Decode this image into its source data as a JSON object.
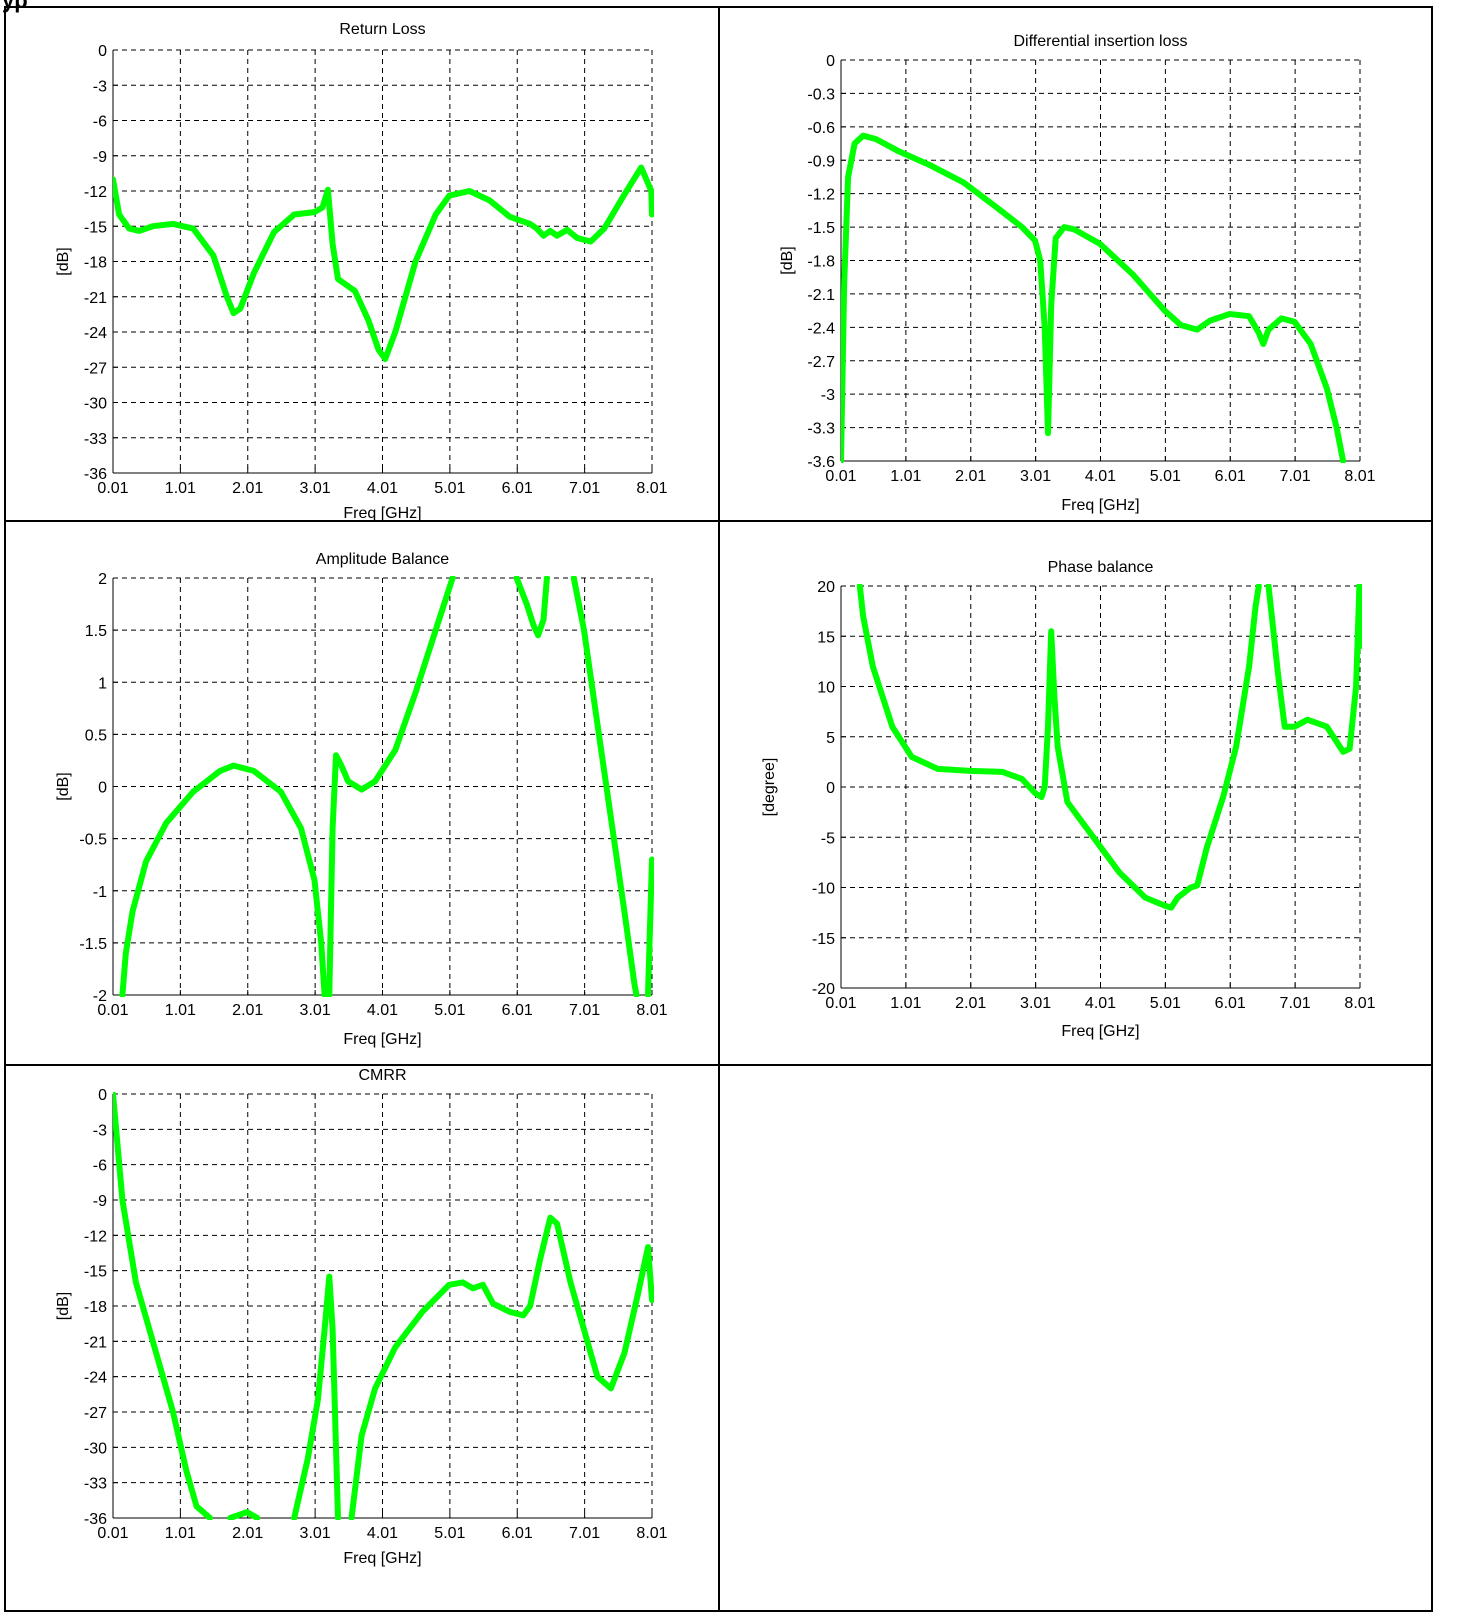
{
  "page": {
    "heading": "yp"
  },
  "chart_data": [
    {
      "type": "line",
      "title": "Return Loss",
      "xlabel": "Freq [GHz]",
      "ylabel": "[dB]",
      "xlim": [
        0.01,
        8.01
      ],
      "ylim": [
        -36,
        0
      ],
      "xticks": [
        0.01,
        1.01,
        2.01,
        3.01,
        4.01,
        5.01,
        6.01,
        7.01,
        8.01
      ],
      "xtick_labels": [
        "0.01",
        "1.01",
        "2.01",
        "3.01",
        "4.01",
        "5.01",
        "6.01",
        "7.01",
        "8.01"
      ],
      "yticks": [
        0,
        -3,
        -6,
        -9,
        -12,
        -15,
        -18,
        -21,
        -24,
        -27,
        -30,
        -33,
        -36
      ],
      "ytick_labels": [
        "0",
        "-3",
        "-6",
        "-9",
        "-12",
        "-15",
        "-18",
        "-21",
        "-24",
        "-27",
        "-30",
        "-33",
        "-36"
      ],
      "grid": true,
      "color": "#00ff00",
      "series": [
        {
          "points": [
            [
              0.01,
              -11
            ],
            [
              0.1,
              -14
            ],
            [
              0.25,
              -15.2
            ],
            [
              0.4,
              -15.4
            ],
            [
              0.6,
              -15
            ],
            [
              0.9,
              -14.8
            ],
            [
              1.2,
              -15.2
            ],
            [
              1.5,
              -17.5
            ],
            [
              1.7,
              -21
            ],
            [
              1.8,
              -22.4
            ],
            [
              1.9,
              -22
            ],
            [
              2.1,
              -19
            ],
            [
              2.4,
              -15.5
            ],
            [
              2.7,
              -14
            ],
            [
              3.0,
              -13.8
            ],
            [
              3.12,
              -13.4
            ],
            [
              3.2,
              -11.9
            ],
            [
              3.27,
              -16.5
            ],
            [
              3.35,
              -19.5
            ],
            [
              3.6,
              -20.5
            ],
            [
              3.8,
              -23
            ],
            [
              3.95,
              -25.5
            ],
            [
              4.05,
              -26.3
            ],
            [
              4.2,
              -24
            ],
            [
              4.5,
              -18
            ],
            [
              4.8,
              -14
            ],
            [
              5.0,
              -12.4
            ],
            [
              5.3,
              -12
            ],
            [
              5.6,
              -12.8
            ],
            [
              5.9,
              -14.2
            ],
            [
              6.2,
              -14.8
            ],
            [
              6.3,
              -15.2
            ],
            [
              6.4,
              -15.8
            ],
            [
              6.5,
              -15.4
            ],
            [
              6.6,
              -15.8
            ],
            [
              6.75,
              -15.3
            ],
            [
              6.9,
              -16
            ],
            [
              7.1,
              -16.3
            ],
            [
              7.3,
              -15.2
            ],
            [
              7.6,
              -12.3
            ],
            [
              7.85,
              -10
            ],
            [
              8.0,
              -12
            ],
            [
              8.01,
              -14
            ]
          ]
        }
      ]
    },
    {
      "type": "line",
      "title": "Differential insertion loss",
      "xlabel": "Freq [GHz]",
      "ylabel": "[dB]",
      "xlim": [
        0.01,
        8.01
      ],
      "ylim": [
        -3.6,
        0
      ],
      "xticks": [
        0.01,
        1.01,
        2.01,
        3.01,
        4.01,
        5.01,
        6.01,
        7.01,
        8.01
      ],
      "xtick_labels": [
        "0.01",
        "1.01",
        "2.01",
        "3.01",
        "4.01",
        "5.01",
        "6.01",
        "7.01",
        "8.01"
      ],
      "yticks": [
        0,
        -0.3,
        -0.6,
        -0.9,
        -1.2,
        -1.5,
        -1.8,
        -2.1,
        -2.4,
        -2.7,
        -3,
        -3.3,
        -3.6
      ],
      "ytick_labels": [
        "0",
        "-0.3",
        "-0.6",
        "-0.9",
        "-1.2",
        "-1.5",
        "-1.8",
        "-2.1",
        "-2.4",
        "-2.7",
        "-3",
        "-3.3",
        "-3.6"
      ],
      "grid": true,
      "color": "#00ff00",
      "series": [
        {
          "points": [
            [
              0.01,
              -3.6
            ],
            [
              0.06,
              -2
            ],
            [
              0.12,
              -1.05
            ],
            [
              0.22,
              -0.75
            ],
            [
              0.35,
              -0.68
            ],
            [
              0.55,
              -0.71
            ],
            [
              0.9,
              -0.82
            ],
            [
              1.4,
              -0.95
            ],
            [
              1.9,
              -1.1
            ],
            [
              2.4,
              -1.32
            ],
            [
              2.8,
              -1.5
            ],
            [
              3.0,
              -1.62
            ],
            [
              3.08,
              -1.8
            ],
            [
              3.15,
              -2.4
            ],
            [
              3.2,
              -3.35
            ],
            [
              3.25,
              -2.2
            ],
            [
              3.32,
              -1.6
            ],
            [
              3.45,
              -1.5
            ],
            [
              3.6,
              -1.52
            ],
            [
              4.0,
              -1.65
            ],
            [
              4.5,
              -1.92
            ],
            [
              5.0,
              -2.25
            ],
            [
              5.25,
              -2.38
            ],
            [
              5.5,
              -2.42
            ],
            [
              5.7,
              -2.34
            ],
            [
              6.0,
              -2.28
            ],
            [
              6.3,
              -2.3
            ],
            [
              6.45,
              -2.45
            ],
            [
              6.52,
              -2.55
            ],
            [
              6.6,
              -2.42
            ],
            [
              6.8,
              -2.32
            ],
            [
              7.0,
              -2.35
            ],
            [
              7.25,
              -2.55
            ],
            [
              7.5,
              -2.95
            ],
            [
              7.65,
              -3.3
            ],
            [
              7.75,
              -3.6
            ]
          ]
        }
      ]
    },
    {
      "type": "line",
      "title": "Amplitude Balance",
      "xlabel": "Freq [GHz]",
      "ylabel": "[dB]",
      "xlim": [
        0.01,
        8.01
      ],
      "ylim": [
        -2,
        2
      ],
      "xticks": [
        0.01,
        1.01,
        2.01,
        3.01,
        4.01,
        5.01,
        6.01,
        7.01,
        8.01
      ],
      "xtick_labels": [
        "0.01",
        "1.01",
        "2.01",
        "3.01",
        "4.01",
        "5.01",
        "6.01",
        "7.01",
        "8.01"
      ],
      "yticks": [
        2,
        1.5,
        1,
        0.5,
        0,
        -0.5,
        -1,
        -1.5,
        -2
      ],
      "ytick_labels": [
        "2",
        "1.5",
        "1",
        "0.5",
        "0",
        "-0.5",
        "-1",
        "-1.5",
        "-2"
      ],
      "grid": true,
      "color": "#00ff00",
      "series": [
        {
          "points": [
            [
              0.15,
              -2
            ],
            [
              0.2,
              -1.6
            ],
            [
              0.3,
              -1.2
            ],
            [
              0.5,
              -0.72
            ],
            [
              0.8,
              -0.35
            ],
            [
              1.2,
              -0.05
            ],
            [
              1.6,
              0.15
            ],
            [
              1.8,
              0.2
            ],
            [
              2.1,
              0.15
            ],
            [
              2.5,
              -0.05
            ],
            [
              2.8,
              -0.4
            ],
            [
              3.0,
              -0.9
            ],
            [
              3.1,
              -1.5
            ],
            [
              3.15,
              -2
            ]
          ]
        },
        {
          "points": [
            [
              3.22,
              -2
            ],
            [
              3.27,
              -0.4
            ],
            [
              3.32,
              0.3
            ],
            [
              3.4,
              0.2
            ],
            [
              3.5,
              0.05
            ],
            [
              3.7,
              -0.03
            ],
            [
              3.9,
              0.05
            ],
            [
              4.2,
              0.35
            ],
            [
              4.5,
              0.9
            ],
            [
              4.8,
              1.5
            ],
            [
              5.0,
              1.9
            ],
            [
              5.05,
              2
            ]
          ]
        },
        {
          "points": [
            [
              6.0,
              2
            ],
            [
              6.15,
              1.75
            ],
            [
              6.25,
              1.55
            ],
            [
              6.32,
              1.45
            ],
            [
              6.4,
              1.6
            ],
            [
              6.45,
              2
            ]
          ]
        },
        {
          "points": [
            [
              6.85,
              2
            ],
            [
              7.0,
              1.5
            ],
            [
              7.2,
              0.6
            ],
            [
              7.4,
              -0.3
            ],
            [
              7.6,
              -1.2
            ],
            [
              7.75,
              -1.9
            ],
            [
              7.78,
              -2
            ]
          ]
        },
        {
          "points": [
            [
              7.95,
              -2
            ],
            [
              8.01,
              -0.7
            ]
          ]
        }
      ]
    },
    {
      "type": "line",
      "title": "Phase balance",
      "xlabel": "Freq [GHz]",
      "ylabel": "[degree]",
      "xlim": [
        0.01,
        8.01
      ],
      "ylim": [
        -20,
        20
      ],
      "xticks": [
        0.01,
        1.01,
        2.01,
        3.01,
        4.01,
        5.01,
        6.01,
        7.01,
        8.01
      ],
      "xtick_labels": [
        "0.01",
        "1.01",
        "2.01",
        "3.01",
        "4.01",
        "5.01",
        "6.01",
        "7.01",
        "8.01"
      ],
      "yticks": [
        20,
        15,
        10,
        5,
        0,
        -5,
        -10,
        -15,
        -20
      ],
      "ytick_labels": [
        "20",
        "15",
        "10",
        "5",
        "0",
        "-5",
        "-10",
        "-15",
        "-20"
      ],
      "grid": true,
      "color": "#00ff00",
      "series": [
        {
          "points": [
            [
              0.3,
              20
            ],
            [
              0.35,
              17
            ],
            [
              0.5,
              12
            ],
            [
              0.8,
              6
            ],
            [
              1.1,
              3
            ],
            [
              1.5,
              1.8
            ],
            [
              2.0,
              1.6
            ],
            [
              2.5,
              1.5
            ],
            [
              2.8,
              0.8
            ],
            [
              3.0,
              -0.6
            ],
            [
              3.1,
              -1
            ],
            [
              3.15,
              0
            ],
            [
              3.2,
              6
            ],
            [
              3.25,
              15.5
            ],
            [
              3.3,
              9
            ],
            [
              3.35,
              4
            ],
            [
              3.5,
              -1.5
            ],
            [
              3.9,
              -5
            ],
            [
              4.3,
              -8.5
            ],
            [
              4.7,
              -11
            ],
            [
              5.0,
              -11.8
            ],
            [
              5.1,
              -12
            ],
            [
              5.2,
              -11
            ],
            [
              5.4,
              -10
            ],
            [
              5.5,
              -9.8
            ],
            [
              5.65,
              -6
            ],
            [
              5.9,
              -1
            ],
            [
              6.1,
              4
            ],
            [
              6.3,
              12
            ],
            [
              6.4,
              18
            ],
            [
              6.45,
              20
            ]
          ]
        },
        {
          "points": [
            [
              6.6,
              20
            ],
            [
              6.65,
              17
            ],
            [
              6.75,
              11
            ],
            [
              6.85,
              6
            ],
            [
              7.0,
              6
            ],
            [
              7.2,
              6.7
            ],
            [
              7.5,
              6
            ],
            [
              7.75,
              3.5
            ],
            [
              7.85,
              3.8
            ],
            [
              7.95,
              10
            ],
            [
              8.0,
              20
            ]
          ]
        },
        {
          "points": [
            [
              8.01,
              20
            ],
            [
              8.01,
              14
            ]
          ]
        }
      ]
    },
    {
      "type": "line",
      "title": "CMRR",
      "xlabel": "Freq [GHz]",
      "ylabel": "[dB]",
      "xlim": [
        0.01,
        8.01
      ],
      "ylim": [
        -36,
        0
      ],
      "xticks": [
        0.01,
        1.01,
        2.01,
        3.01,
        4.01,
        5.01,
        6.01,
        7.01,
        8.01
      ],
      "xtick_labels": [
        "0.01",
        "1.01",
        "2.01",
        "3.01",
        "4.01",
        "5.01",
        "6.01",
        "7.01",
        "8.01"
      ],
      "yticks": [
        0,
        -3,
        -6,
        -9,
        -12,
        -15,
        -18,
        -21,
        -24,
        -27,
        -30,
        -33,
        -36
      ],
      "ytick_labels": [
        "0",
        "-3",
        "-6",
        "-9",
        "-12",
        "-15",
        "-18",
        "-21",
        "-24",
        "-27",
        "-30",
        "-33",
        "-36"
      ],
      "grid": true,
      "color": "#00ff00",
      "series": [
        {
          "points": [
            [
              0.01,
              0
            ],
            [
              0.15,
              -9
            ],
            [
              0.35,
              -16
            ],
            [
              0.6,
              -21
            ],
            [
              0.9,
              -27
            ],
            [
              1.1,
              -32
            ],
            [
              1.25,
              -35
            ],
            [
              1.45,
              -36
            ]
          ]
        },
        {
          "points": [
            [
              1.75,
              -36
            ],
            [
              2.0,
              -35.5
            ],
            [
              2.15,
              -36
            ]
          ]
        },
        {
          "points": [
            [
              2.7,
              -36
            ],
            [
              2.9,
              -31
            ],
            [
              3.05,
              -26
            ],
            [
              3.15,
              -20
            ],
            [
              3.22,
              -15.5
            ],
            [
              3.27,
              -20
            ],
            [
              3.32,
              -30
            ],
            [
              3.35,
              -36
            ]
          ]
        },
        {
          "points": [
            [
              3.55,
              -36
            ],
            [
              3.7,
              -29
            ],
            [
              3.9,
              -25
            ],
            [
              4.2,
              -21.5
            ],
            [
              4.6,
              -18.5
            ],
            [
              5.0,
              -16.2
            ],
            [
              5.2,
              -16
            ],
            [
              5.35,
              -16.5
            ],
            [
              5.5,
              -16.2
            ],
            [
              5.65,
              -17.8
            ],
            [
              5.9,
              -18.5
            ],
            [
              6.1,
              -18.8
            ],
            [
              6.2,
              -18
            ],
            [
              6.35,
              -14
            ],
            [
              6.5,
              -10.5
            ],
            [
              6.6,
              -11
            ],
            [
              6.8,
              -16
            ],
            [
              7.0,
              -20
            ],
            [
              7.2,
              -24
            ],
            [
              7.4,
              -25
            ],
            [
              7.6,
              -22
            ],
            [
              7.8,
              -17
            ],
            [
              7.95,
              -13
            ],
            [
              8.01,
              -17.5
            ]
          ]
        }
      ]
    }
  ]
}
